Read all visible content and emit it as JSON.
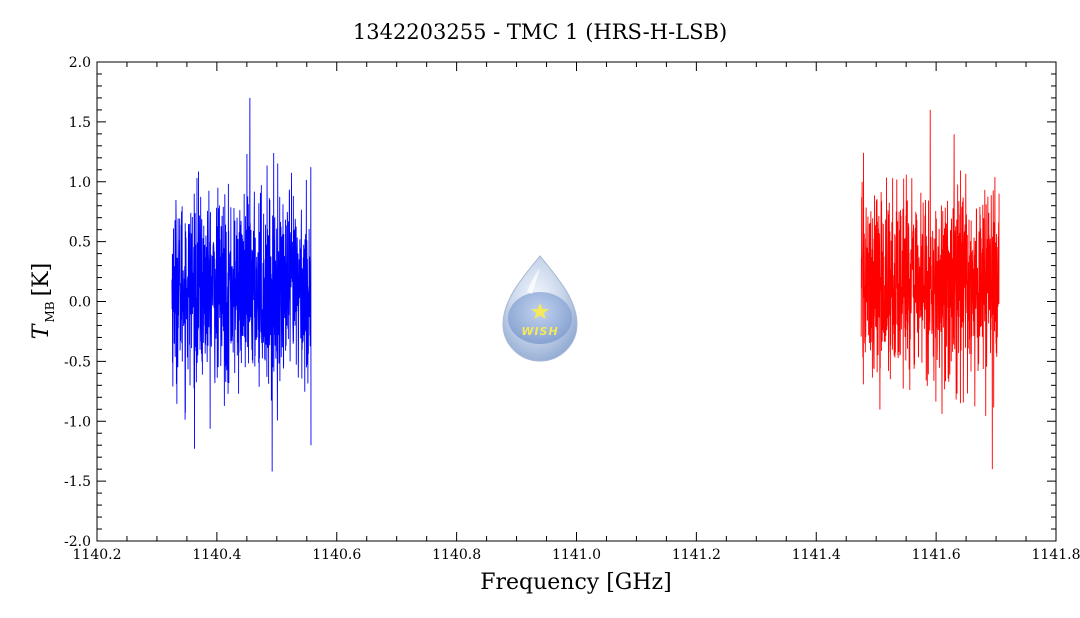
{
  "chart_data": {
    "type": "line",
    "title": "1342203255 - TMC 1 (HRS-H-LSB)",
    "xlabel": "Frequency [GHz]",
    "ylabel_main": "T",
    "ylabel_sub": "MB",
    "ylabel_unit": "[K]",
    "xlim": [
      1140.2,
      1141.8
    ],
    "ylim": [
      -2.0,
      2.0
    ],
    "x_ticks": [
      "1140.2",
      "1140.4",
      "1140.6",
      "1140.8",
      "1141.0",
      "1141.2",
      "1141.4",
      "1141.6",
      "1141.8"
    ],
    "y_ticks": [
      "2.0",
      "1.5",
      "1.0",
      "0.5",
      "0.0",
      "-0.5",
      "-1.0",
      "-1.5",
      "-2.0"
    ],
    "grid": false,
    "series": [
      {
        "color": "#0000ff",
        "x_range": [
          1140.325,
          1140.557
        ],
        "mean": 0.1,
        "noise_sigma": 0.38,
        "y_max": 1.7,
        "y_min": -1.42,
        "y_end": -1.2
      },
      {
        "color": "#ff0000",
        "x_range": [
          1141.475,
          1141.705
        ],
        "mean": 0.15,
        "noise_sigma": 0.38,
        "y_max": 1.6,
        "y_min": -1.4,
        "y_end": 0.9
      }
    ],
    "logo": {
      "text": "WISH",
      "colors": [
        "#c9d6ea",
        "#8fa9d2",
        "#f5e85a"
      ]
    }
  }
}
